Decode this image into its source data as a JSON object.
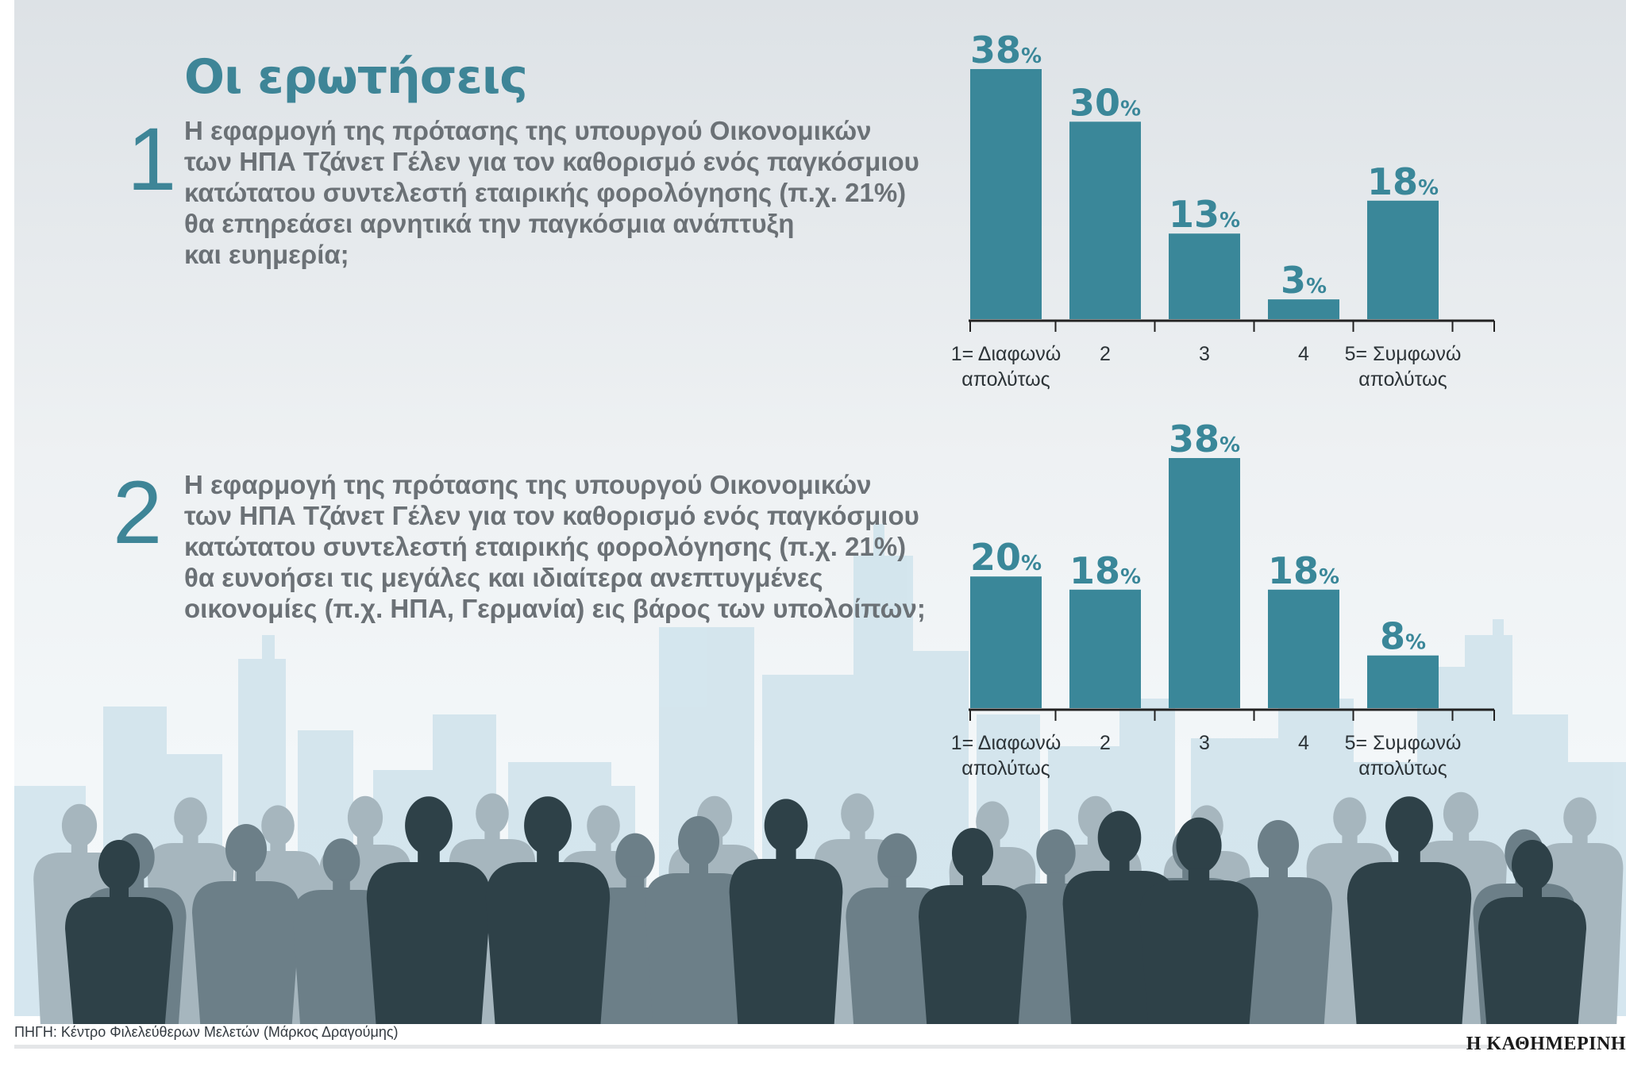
{
  "title": "Οι ερωτήσεις",
  "questions": [
    {
      "number": "1",
      "text_lines": [
        "Η εφαρμογή της πρότασης της υπουργού Οικονομικών",
        "των ΗΠΑ Τζάνετ Γέλεν για τον καθορισμό ενός παγκόσμιου",
        "κατώτατου συντελεστή εταιρικής φορολόγησης (π.χ. 21%)",
        "θα επηρεάσει αρνητικά την παγκόσμια ανάπτυξη",
        "και ευημερία;"
      ]
    },
    {
      "number": "2",
      "text_lines": [
        "Η εφαρμογή της πρότασης της υπουργού Οικονομικών",
        "των ΗΠΑ Τζάνετ Γέλεν για τον καθορισμό ενός παγκόσμιου",
        "κατώτατου συντελεστή εταιρικής φορολόγησης (π.χ. 21%)",
        "θα ευνοήσει τις μεγάλες και ιδιαίτερα ανεπτυγμένες",
        "οικονομίες (π.χ. ΗΠΑ, Γερμανία) εις βάρος των υπολοίπων;"
      ]
    }
  ],
  "chart_data": [
    {
      "type": "bar",
      "title": "",
      "categories": [
        [
          "1= Διαφωνώ",
          "απολύτως"
        ],
        [
          "2"
        ],
        [
          "3"
        ],
        [
          "4"
        ],
        [
          "5= Συμφωνώ",
          "απολύτως"
        ]
      ],
      "values": [
        38,
        30,
        13,
        3,
        18
      ],
      "data_labels": [
        "38",
        "30",
        "13",
        "3",
        "18"
      ],
      "unit": "%",
      "ylim": [
        0,
        38
      ],
      "grid": false,
      "bar_color": "#3a8799"
    },
    {
      "type": "bar",
      "title": "",
      "categories": [
        [
          "1= Διαφωνώ",
          "απολύτως"
        ],
        [
          "2"
        ],
        [
          "3"
        ],
        [
          "4"
        ],
        [
          "5= Συμφωνώ",
          "απολύτως"
        ]
      ],
      "values": [
        20,
        18,
        38,
        18,
        8
      ],
      "data_labels": [
        "20",
        "18",
        "38",
        "18",
        "8"
      ],
      "unit": "%",
      "ylim": [
        0,
        38
      ],
      "grid": false,
      "bar_color": "#3a8799"
    }
  ],
  "source": "ΠΗΓΗ: Κέντρο Φιλελεύθερων Μελετών (Μάρκος Δραγούμης)",
  "brand": "Η ΚΑΘΗΜΕΡΙΝΗ",
  "colors": {
    "accent": "#3e8597",
    "bar": "#3a8799",
    "question_text": "#6b7176",
    "silhouette_dark": "#2e4148",
    "silhouette_mid": "#6c7f88",
    "silhouette_light": "#a6b6be"
  }
}
